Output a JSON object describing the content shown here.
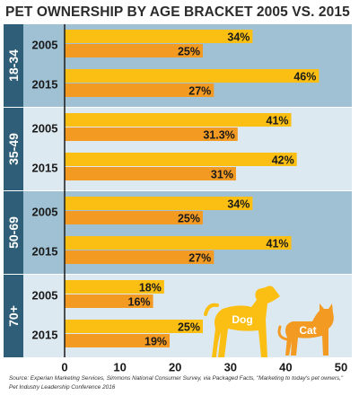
{
  "chart_data": {
    "type": "bar",
    "orientation": "horizontal",
    "title": "PET OWNERSHIP BY AGE BRACKET 2005 VS. 2015",
    "xlim": [
      0,
      50
    ],
    "xticks": [
      0,
      10,
      20,
      30,
      40,
      50
    ],
    "groups": [
      {
        "label": "18-34",
        "rows": [
          {
            "year": "2005",
            "dog": 34,
            "dog_label": "34%",
            "cat": 25,
            "cat_label": "25%"
          },
          {
            "year": "2015",
            "dog": 46,
            "dog_label": "46%",
            "cat": 27,
            "cat_label": "27%"
          }
        ]
      },
      {
        "label": "35-49",
        "rows": [
          {
            "year": "2005",
            "dog": 41,
            "dog_label": "41%",
            "cat": 31.3,
            "cat_label": "31.3%"
          },
          {
            "year": "2015",
            "dog": 42,
            "dog_label": "42%",
            "cat": 31,
            "cat_label": "31%"
          }
        ]
      },
      {
        "label": "50-69",
        "rows": [
          {
            "year": "2005",
            "dog": 34,
            "dog_label": "34%",
            "cat": 25,
            "cat_label": "25%"
          },
          {
            "year": "2015",
            "dog": 41,
            "dog_label": "41%",
            "cat": 27,
            "cat_label": "27%"
          }
        ]
      },
      {
        "label": "70+",
        "rows": [
          {
            "year": "2005",
            "dog": 18,
            "dog_label": "18%",
            "cat": 16,
            "cat_label": "16%"
          },
          {
            "year": "2015",
            "dog": 25,
            "dog_label": "25%",
            "cat": 19,
            "cat_label": "19%"
          }
        ]
      }
    ],
    "legend": {
      "dog": "Dog",
      "cat": "Cat",
      "placement": "bottom-right"
    },
    "colors": {
      "dog": "#fbbf13",
      "cat": "#f39a22",
      "panel_dark": "#9fc1d3",
      "panel_light": "#dde9f0",
      "group_tab": "#2f5f78"
    },
    "source_lines": [
      "Source: Experian Marketing Services, Simmons National Consumer Survey, via Packaged Facts, \"Marketing to today's pet owners,\"",
      "Pet Industry Leadership Conference 2016"
    ]
  }
}
